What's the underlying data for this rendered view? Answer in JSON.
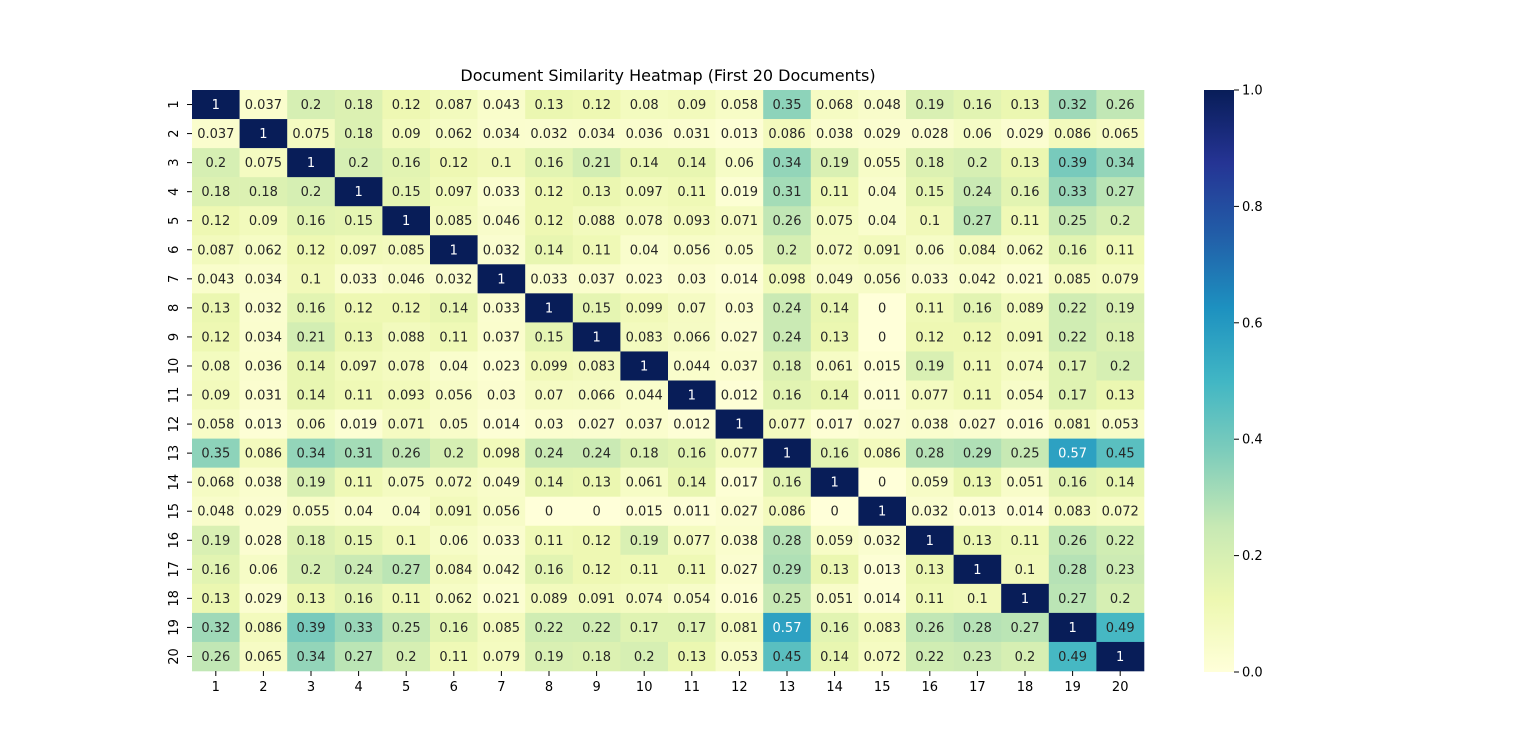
{
  "chart_data": {
    "type": "heatmap",
    "title": "Document Similarity Heatmap (First 20 Documents)",
    "xlabel": "",
    "ylabel": "",
    "x_categories": [
      "1",
      "2",
      "3",
      "4",
      "5",
      "6",
      "7",
      "8",
      "9",
      "10",
      "11",
      "12",
      "13",
      "14",
      "15",
      "16",
      "17",
      "18",
      "19",
      "20"
    ],
    "y_categories": [
      "1",
      "2",
      "3",
      "4",
      "5",
      "6",
      "7",
      "8",
      "9",
      "10",
      "11",
      "12",
      "13",
      "14",
      "15",
      "16",
      "17",
      "18",
      "19",
      "20"
    ],
    "values": [
      [
        1,
        0.037,
        0.2,
        0.18,
        0.12,
        0.087,
        0.043,
        0.13,
        0.12,
        0.08,
        0.09,
        0.058,
        0.35,
        0.068,
        0.048,
        0.19,
        0.16,
        0.13,
        0.32,
        0.26
      ],
      [
        0.037,
        1,
        0.075,
        0.18,
        0.09,
        0.062,
        0.034,
        0.032,
        0.034,
        0.036,
        0.031,
        0.013,
        0.086,
        0.038,
        0.029,
        0.028,
        0.06,
        0.029,
        0.086,
        0.065
      ],
      [
        0.2,
        0.075,
        1,
        0.2,
        0.16,
        0.12,
        0.1,
        0.16,
        0.21,
        0.14,
        0.14,
        0.06,
        0.34,
        0.19,
        0.055,
        0.18,
        0.2,
        0.13,
        0.39,
        0.34
      ],
      [
        0.18,
        0.18,
        0.2,
        1,
        0.15,
        0.097,
        0.033,
        0.12,
        0.13,
        0.097,
        0.11,
        0.019,
        0.31,
        0.11,
        0.04,
        0.15,
        0.24,
        0.16,
        0.33,
        0.27
      ],
      [
        0.12,
        0.09,
        0.16,
        0.15,
        1,
        0.085,
        0.046,
        0.12,
        0.088,
        0.078,
        0.093,
        0.071,
        0.26,
        0.075,
        0.04,
        0.1,
        0.27,
        0.11,
        0.25,
        0.2
      ],
      [
        0.087,
        0.062,
        0.12,
        0.097,
        0.085,
        1,
        0.032,
        0.14,
        0.11,
        0.04,
        0.056,
        0.05,
        0.2,
        0.072,
        0.091,
        0.06,
        0.084,
        0.062,
        0.16,
        0.11
      ],
      [
        0.043,
        0.034,
        0.1,
        0.033,
        0.046,
        0.032,
        1,
        0.033,
        0.037,
        0.023,
        0.03,
        0.014,
        0.098,
        0.049,
        0.056,
        0.033,
        0.042,
        0.021,
        0.085,
        0.079
      ],
      [
        0.13,
        0.032,
        0.16,
        0.12,
        0.12,
        0.14,
        0.033,
        1,
        0.15,
        0.099,
        0.07,
        0.03,
        0.24,
        0.14,
        0,
        0.11,
        0.16,
        0.089,
        0.22,
        0.19
      ],
      [
        0.12,
        0.034,
        0.21,
        0.13,
        0.088,
        0.11,
        0.037,
        0.15,
        1,
        0.083,
        0.066,
        0.027,
        0.24,
        0.13,
        0,
        0.12,
        0.12,
        0.091,
        0.22,
        0.18
      ],
      [
        0.08,
        0.036,
        0.14,
        0.097,
        0.078,
        0.04,
        0.023,
        0.099,
        0.083,
        1,
        0.044,
        0.037,
        0.18,
        0.061,
        0.015,
        0.19,
        0.11,
        0.074,
        0.17,
        0.2
      ],
      [
        0.09,
        0.031,
        0.14,
        0.11,
        0.093,
        0.056,
        0.03,
        0.07,
        0.066,
        0.044,
        1,
        0.012,
        0.16,
        0.14,
        0.011,
        0.077,
        0.11,
        0.054,
        0.17,
        0.13
      ],
      [
        0.058,
        0.013,
        0.06,
        0.019,
        0.071,
        0.05,
        0.014,
        0.03,
        0.027,
        0.037,
        0.012,
        1,
        0.077,
        0.017,
        0.027,
        0.038,
        0.027,
        0.016,
        0.081,
        0.053
      ],
      [
        0.35,
        0.086,
        0.34,
        0.31,
        0.26,
        0.2,
        0.098,
        0.24,
        0.24,
        0.18,
        0.16,
        0.077,
        1,
        0.16,
        0.086,
        0.28,
        0.29,
        0.25,
        0.57,
        0.45
      ],
      [
        0.068,
        0.038,
        0.19,
        0.11,
        0.075,
        0.072,
        0.049,
        0.14,
        0.13,
        0.061,
        0.14,
        0.017,
        0.16,
        1,
        0,
        0.059,
        0.13,
        0.051,
        0.16,
        0.14
      ],
      [
        0.048,
        0.029,
        0.055,
        0.04,
        0.04,
        0.091,
        0.056,
        0,
        0,
        0.015,
        0.011,
        0.027,
        0.086,
        0,
        1,
        0.032,
        0.013,
        0.014,
        0.083,
        0.072
      ],
      [
        0.19,
        0.028,
        0.18,
        0.15,
        0.1,
        0.06,
        0.033,
        0.11,
        0.12,
        0.19,
        0.077,
        0.038,
        0.28,
        0.059,
        0.032,
        1,
        0.13,
        0.11,
        0.26,
        0.22
      ],
      [
        0.16,
        0.06,
        0.2,
        0.24,
        0.27,
        0.084,
        0.042,
        0.16,
        0.12,
        0.11,
        0.11,
        0.027,
        0.29,
        0.13,
        0.013,
        0.13,
        1,
        0.1,
        0.28,
        0.23
      ],
      [
        0.13,
        0.029,
        0.13,
        0.16,
        0.11,
        0.062,
        0.021,
        0.089,
        0.091,
        0.074,
        0.054,
        0.016,
        0.25,
        0.051,
        0.014,
        0.11,
        0.1,
        1,
        0.27,
        0.2
      ],
      [
        0.32,
        0.086,
        0.39,
        0.33,
        0.25,
        0.16,
        0.085,
        0.22,
        0.22,
        0.17,
        0.17,
        0.081,
        0.57,
        0.16,
        0.083,
        0.26,
        0.28,
        0.27,
        1,
        0.49
      ],
      [
        0.26,
        0.065,
        0.34,
        0.27,
        0.2,
        0.11,
        0.079,
        0.19,
        0.18,
        0.2,
        0.13,
        0.053,
        0.45,
        0.14,
        0.072,
        0.22,
        0.23,
        0.2,
        0.49,
        1
      ]
    ],
    "colorbar": {
      "range": [
        0,
        1
      ],
      "ticks": [
        "0.0",
        "0.2",
        "0.4",
        "0.6",
        "0.8",
        "1.0"
      ],
      "colormap": "YlGnBu",
      "colormap_stops": [
        "#ffffd9",
        "#edf8b1",
        "#c7e9b4",
        "#7fcdbb",
        "#41b6c4",
        "#1d91c0",
        "#225ea8",
        "#253494",
        "#081d58"
      ]
    },
    "annotations": true,
    "grid": false
  }
}
